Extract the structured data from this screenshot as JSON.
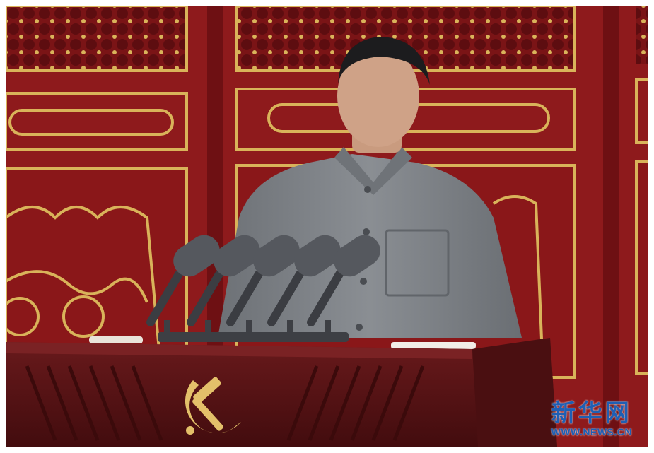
{
  "image": {
    "subject": "speaker-at-podium",
    "colors": {
      "wall_red": "#8e1a1c",
      "wall_dark": "#6e1013",
      "gold": "#d9b35a",
      "suit_gray": "#7d8186",
      "podium": "#5a1416",
      "mic": "#55585e",
      "emblem": "#e3c06a"
    }
  },
  "watermark": {
    "logo_text": "新华网",
    "url_text": "WWW.NEWS.CN",
    "color": "#1f5fb4"
  }
}
